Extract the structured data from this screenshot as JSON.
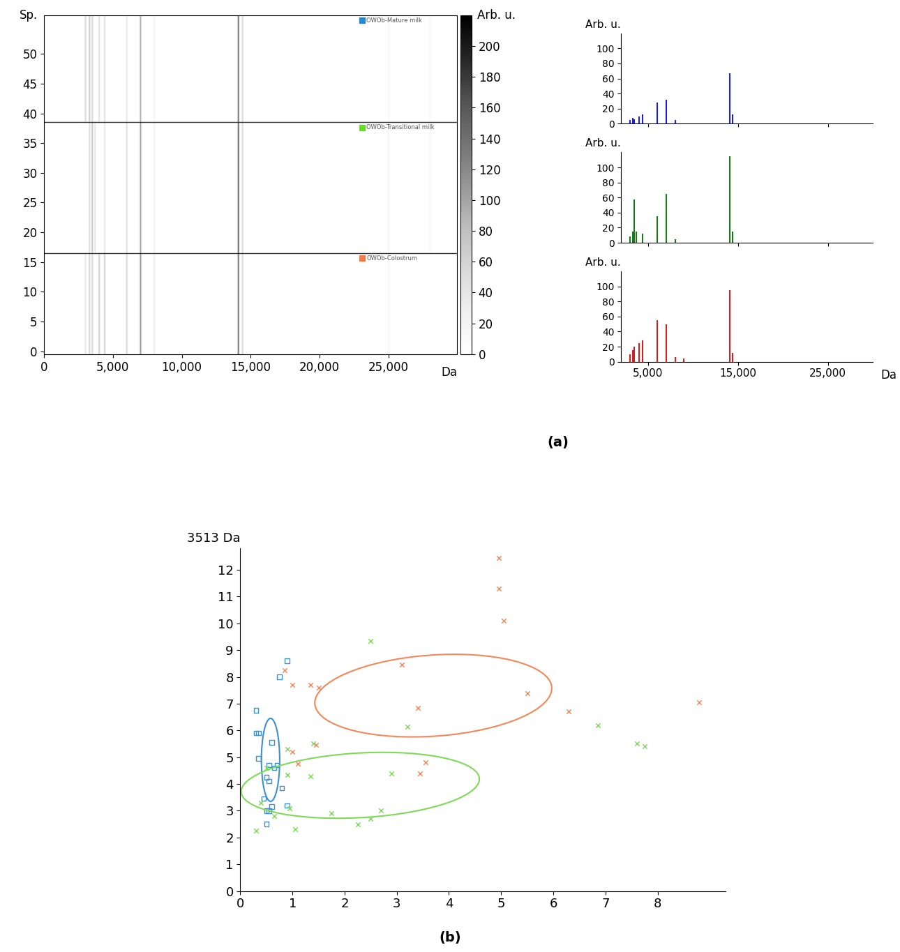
{
  "chart_data": [
    {
      "type": "heatmap",
      "ylabel": "Sp.",
      "xlabel": "Da",
      "xlim": [
        0,
        30000
      ],
      "xticks": [
        0,
        {
          "value": 5000,
          "label": "5,000"
        },
        {
          "value": 10000,
          "label": "10,000"
        },
        {
          "value": 15000,
          "label": "15,000"
        },
        {
          "value": 20000,
          "label": "20,000"
        },
        {
          "value": 25000,
          "label": "25,000"
        }
      ],
      "ylim": [
        -0.5,
        56.5
      ],
      "yticks": [
        0,
        5,
        10,
        15,
        20,
        25,
        30,
        35,
        40,
        45,
        50
      ],
      "colorbar_label": "Arb. u.",
      "colorbar_lim": [
        0,
        220
      ],
      "colorbar_ticks": [
        0,
        20,
        40,
        60,
        80,
        100,
        120,
        140,
        160,
        180,
        200
      ],
      "annotations": [
        "(a)"
      ],
      "groups": [
        {
          "name": "OWOb-Colostrum",
          "color": "#f47c48",
          "rows": [
            0,
            16
          ],
          "peaks": [
            3000,
            3300,
            3500,
            4000,
            4400,
            6000,
            7000,
            8000,
            14100,
            14400,
            25000
          ],
          "values": [
            40,
            60,
            60,
            70,
            70,
            60,
            120,
            30,
            150,
            60,
            15
          ]
        },
        {
          "name": "OWOb-Transitional milk",
          "color": "#66dd22",
          "rows": [
            17,
            38
          ],
          "peaks": [
            3300,
            3500,
            3700,
            4400,
            6000,
            7000,
            8000,
            14100,
            14400,
            25000,
            28000
          ],
          "values": [
            50,
            80,
            40,
            40,
            50,
            110,
            25,
            160,
            60,
            20,
            15
          ]
        },
        {
          "name": "OWOb-Mature milk",
          "color": "#1f8dd6",
          "rows": [
            39,
            56
          ],
          "peaks": [
            3000,
            3300,
            3500,
            4000,
            4400,
            6000,
            7000,
            8000,
            14100,
            14400,
            25000,
            28000
          ],
          "values": [
            60,
            70,
            60,
            50,
            50,
            40,
            100,
            20,
            150,
            60,
            15,
            15
          ]
        }
      ]
    },
    {
      "type": "spectrum",
      "ylabel": "Arb. u.",
      "color": "#2222cc",
      "xlim": [
        2000,
        30000
      ],
      "ylim": [
        0,
        120
      ],
      "yticks": [
        0,
        20,
        40,
        60,
        80,
        100
      ],
      "xticks": [
        5000,
        15000,
        25000
      ],
      "tick_labels": "y",
      "x": [
        3000,
        3300,
        3500,
        4000,
        4400,
        6000,
        7000,
        8000,
        14100,
        14400
      ],
      "values": [
        5,
        8,
        6,
        10,
        12,
        28,
        32,
        5,
        67,
        12
      ]
    },
    {
      "type": "spectrum",
      "ylabel": "Arb. u.",
      "color": "#1a7a1a",
      "xlim": [
        2000,
        30000
      ],
      "ylim": [
        0,
        120
      ],
      "yticks": [
        0,
        20,
        40,
        60,
        80,
        100
      ],
      "xticks": [
        5000,
        15000,
        25000
      ],
      "tick_labels": "y",
      "x": [
        3000,
        3300,
        3500,
        3700,
        4400,
        6000,
        7000,
        8000,
        14100,
        14400
      ],
      "values": [
        8,
        15,
        57,
        15,
        12,
        35,
        65,
        5,
        115,
        15
      ]
    },
    {
      "type": "spectrum",
      "ylabel": "Arb. u.",
      "xlabel": "Da",
      "color": "#cc2222",
      "xlim": [
        2000,
        30000
      ],
      "ylim": [
        0,
        120
      ],
      "yticks": [
        0,
        20,
        40,
        60,
        80,
        100
      ],
      "xticks": [
        {
          "value": 5000,
          "label": "5,000"
        },
        {
          "value": 15000,
          "label": "15,000"
        },
        {
          "value": 25000,
          "label": "25,000"
        }
      ],
      "x": [
        3000,
        3300,
        3500,
        4000,
        4400,
        6000,
        7000,
        8000,
        9000,
        14100,
        14400
      ],
      "values": [
        10,
        15,
        20,
        25,
        28,
        55,
        50,
        6,
        4,
        95,
        12
      ]
    },
    {
      "type": "scatter",
      "ylabel": "3513 Da",
      "xlim": [
        0,
        9.3
      ],
      "ylim": [
        0,
        12.8
      ],
      "xticks": [
        0,
        1,
        2,
        3,
        4,
        5,
        6,
        7,
        8
      ],
      "yticks": [
        0,
        1,
        2,
        3,
        4,
        5,
        6,
        7,
        8,
        9,
        10,
        11,
        12
      ],
      "annotations": [
        "(b)"
      ],
      "series": [
        {
          "color": "#3a8fd6",
          "marker": "square",
          "x": [
            0.3,
            0.3,
            0.35,
            0.35,
            0.75,
            0.9,
            0.6,
            0.55,
            0.65,
            0.7,
            0.5,
            0.55,
            0.8,
            0.45,
            0.5,
            0.55,
            0.6,
            0.9,
            0.5
          ],
          "values": [
            6.75,
            5.9,
            5.9,
            4.95,
            8.0,
            8.6,
            5.55,
            4.7,
            4.6,
            4.7,
            4.25,
            4.1,
            3.85,
            3.45,
            3.0,
            3.0,
            3.15,
            3.2,
            2.5
          ],
          "ellipse": {
            "center": [
              0.58,
              4.9
            ],
            "width": 0.35,
            "height": 3.1,
            "angle": 0
          }
        },
        {
          "color": "#7ed957",
          "marker": "x",
          "x": [
            0.3,
            0.4,
            0.5,
            0.65,
            0.9,
            0.9,
            0.95,
            1.05,
            1.35,
            1.4,
            1.75,
            2.25,
            2.5,
            2.5,
            2.7,
            2.9,
            3.2,
            6.85,
            7.6,
            7.75
          ],
          "values": [
            2.25,
            3.3,
            4.6,
            2.8,
            5.3,
            4.35,
            3.1,
            2.3,
            4.3,
            5.5,
            2.9,
            2.5,
            2.7,
            9.35,
            3.0,
            4.4,
            6.15,
            6.2,
            5.5,
            5.4
          ],
          "ellipse": {
            "center": [
              2.3,
              3.95
            ],
            "width": 4.6,
            "height": 2.4,
            "angle": 8
          }
        },
        {
          "color": "#f4875a",
          "marker": "x",
          "x": [
            0.85,
            1.0,
            1.0,
            1.1,
            1.35,
            1.5,
            1.45,
            3.1,
            3.4,
            3.45,
            3.55,
            4.95,
            4.95,
            5.05,
            5.5,
            6.3,
            8.8
          ],
          "values": [
            8.25,
            7.7,
            5.2,
            4.75,
            7.7,
            7.6,
            5.45,
            8.45,
            6.85,
            4.4,
            4.8,
            12.45,
            11.3,
            10.1,
            7.4,
            6.7,
            7.05
          ],
          "ellipse": {
            "center": [
              3.7,
              7.3
            ],
            "width": 4.6,
            "height": 3.0,
            "angle": 12
          }
        }
      ]
    }
  ]
}
